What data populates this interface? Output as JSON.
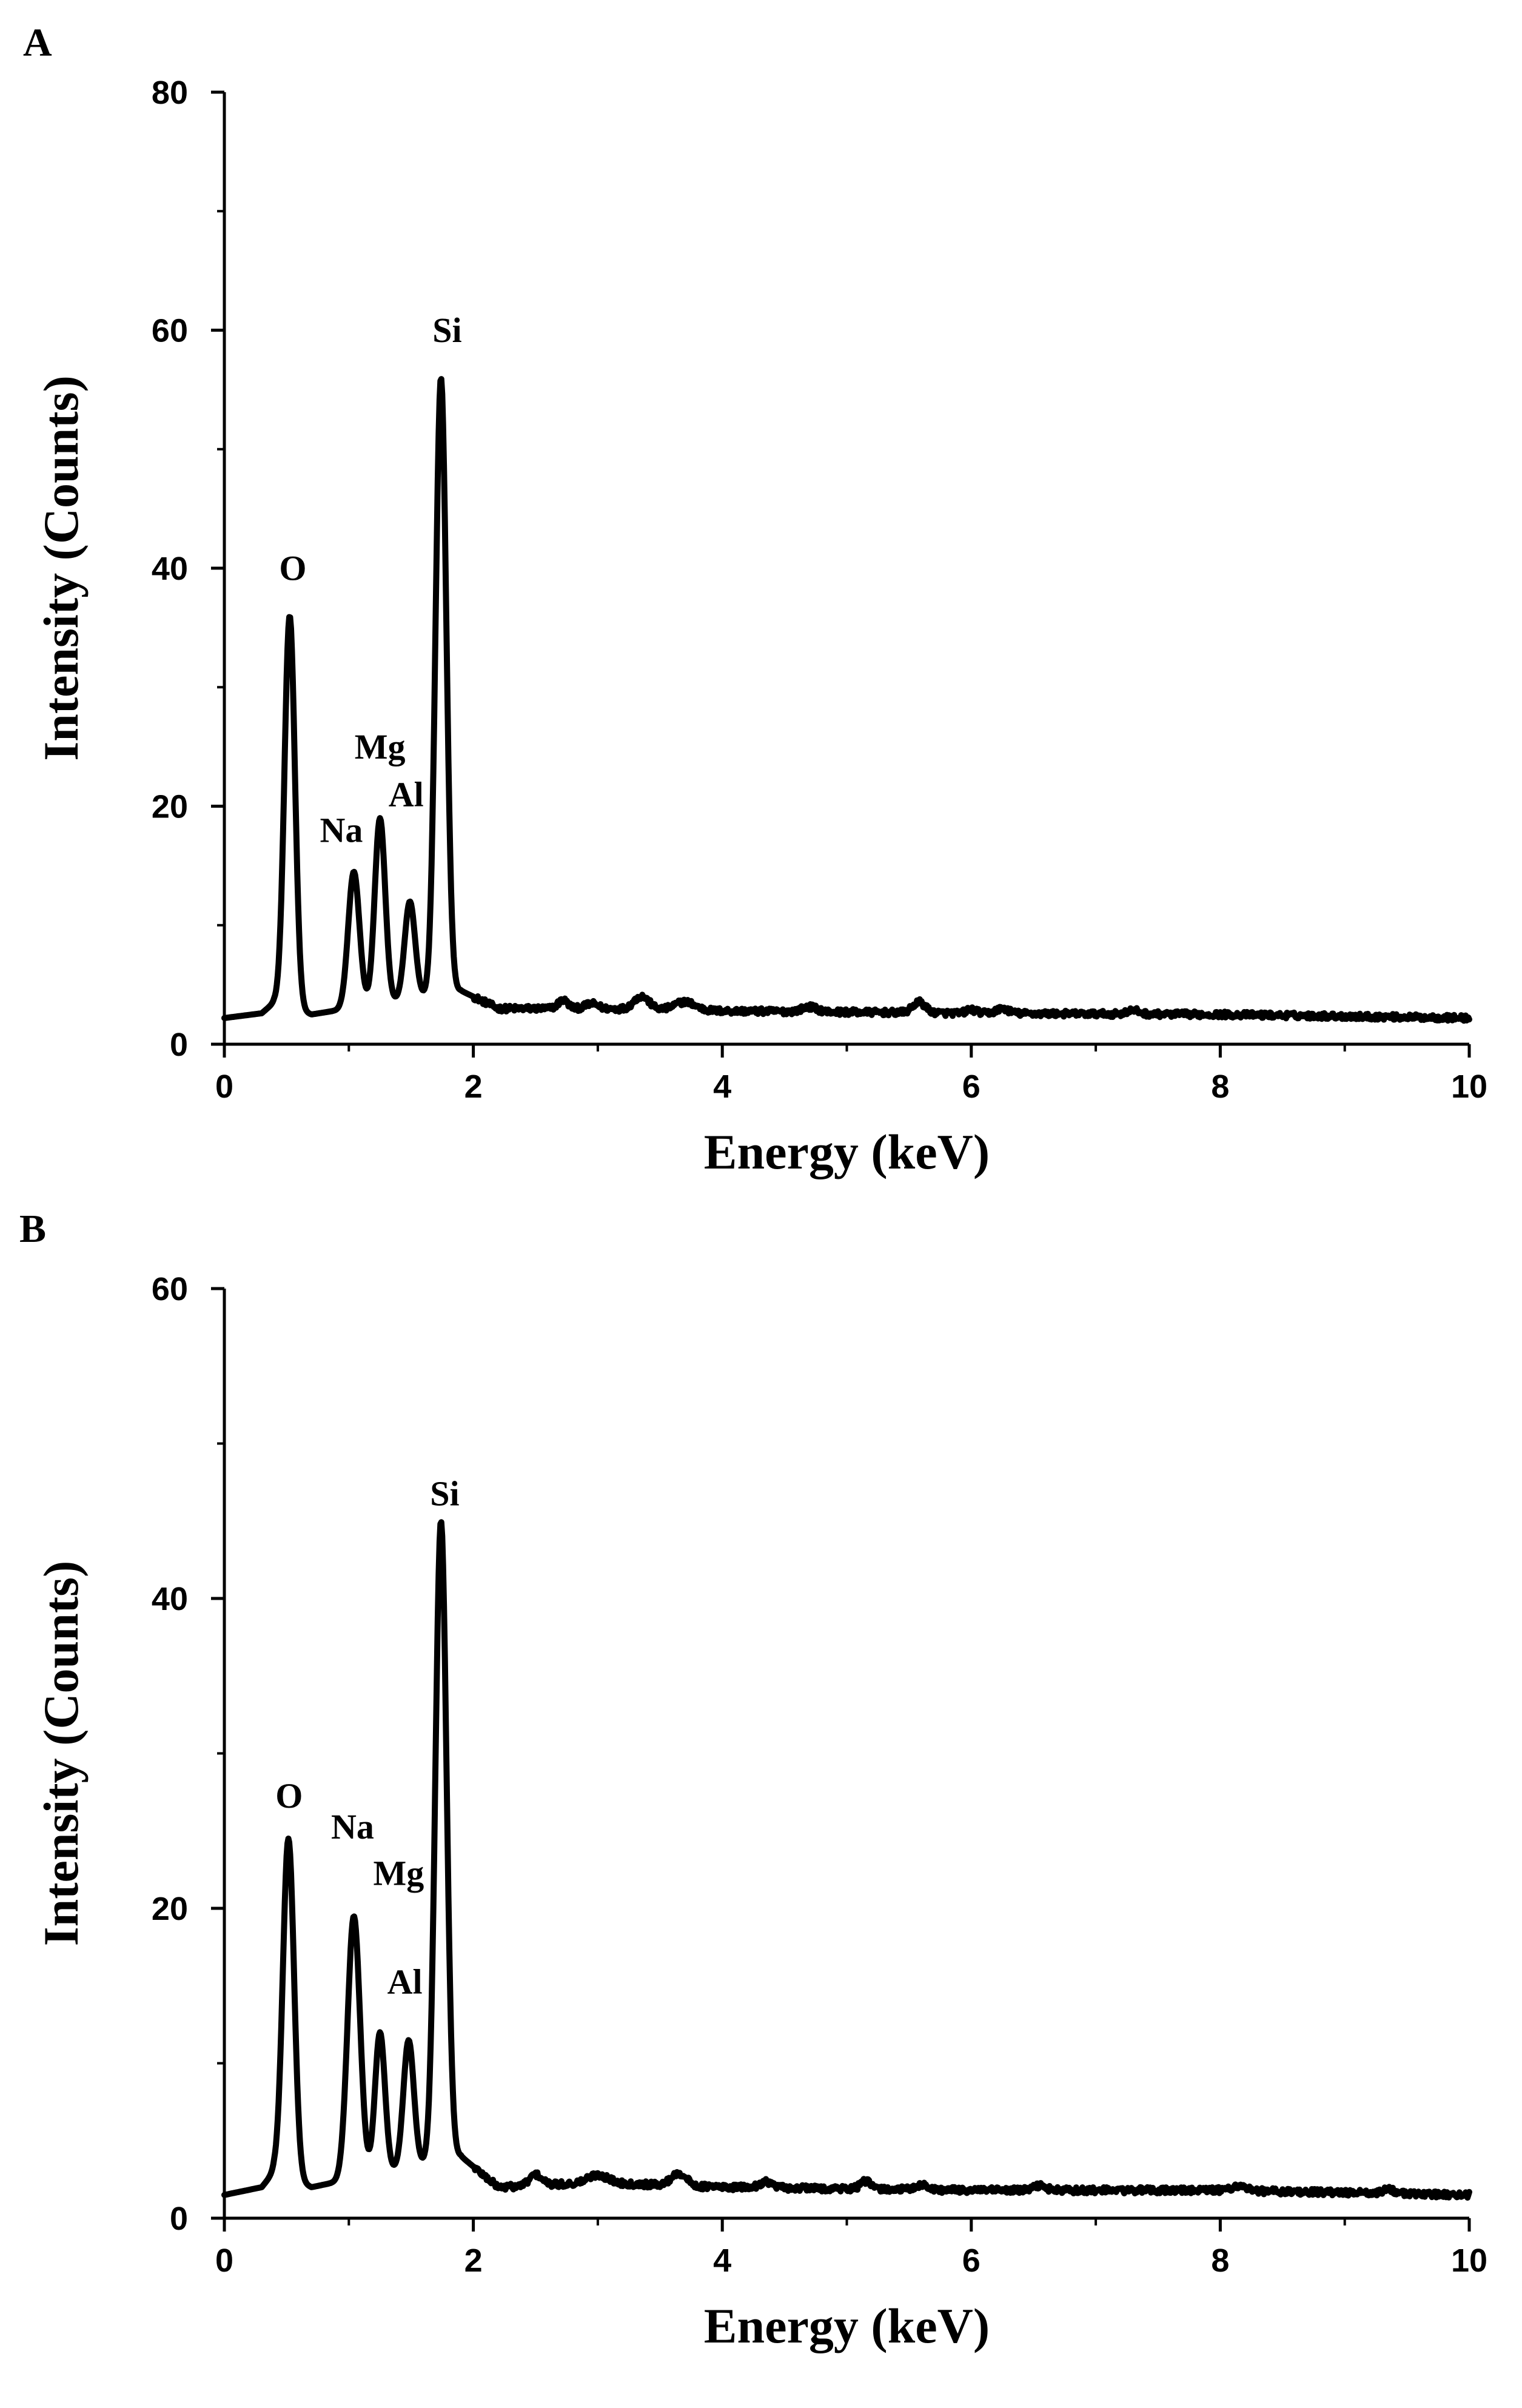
{
  "chart_data": [
    {
      "type": "line",
      "panel": "A",
      "title": "",
      "xlabel": "Energy (keV)",
      "ylabel": "Intensity (Counts)",
      "xlim": [
        0,
        10
      ],
      "ylim": [
        0,
        80
      ],
      "xticks": [
        0,
        2,
        4,
        6,
        8,
        10
      ],
      "yticks": [
        0,
        20,
        40,
        60,
        80
      ],
      "baseline": [
        [
          0,
          2.2
        ],
        [
          0.3,
          2.6
        ],
        [
          0.4,
          3.5
        ],
        [
          0.7,
          2.5
        ],
        [
          1.0,
          3.0
        ],
        [
          1.9,
          4.5
        ],
        [
          2.2,
          3.0
        ],
        [
          3.0,
          3.0
        ],
        [
          4.0,
          2.8
        ],
        [
          6.0,
          2.6
        ],
        [
          8.0,
          2.5
        ],
        [
          10,
          2.2
        ]
      ],
      "noise": 0.25,
      "wiggles": [
        [
          2.72,
          0.7,
          0.04
        ],
        [
          2.95,
          0.4,
          0.05
        ],
        [
          3.35,
          1.1,
          0.06
        ],
        [
          3.7,
          0.7,
          0.08
        ],
        [
          4.7,
          0.4,
          0.06
        ],
        [
          5.58,
          0.9,
          0.05
        ],
        [
          6.0,
          0.3,
          0.04
        ],
        [
          6.25,
          0.4,
          0.05
        ],
        [
          7.3,
          0.3,
          0.05
        ]
      ],
      "peaks": [
        {
          "label": "O",
          "x": 0.525,
          "y": 36,
          "width": 0.042
        },
        {
          "label": "Na",
          "x": 1.04,
          "y": 14.5,
          "width": 0.045
        },
        {
          "label": "Mg",
          "x": 1.25,
          "y": 19,
          "width": 0.042
        },
        {
          "label": "Al",
          "x": 1.49,
          "y": 12,
          "width": 0.042
        },
        {
          "label": "Si",
          "x": 1.74,
          "y": 56,
          "width": 0.043
        }
      ],
      "annotations": [
        {
          "text": "O",
          "x": 0.55,
          "y": 39
        },
        {
          "text": "Na",
          "x": 0.94,
          "y": 17
        },
        {
          "text": "Mg",
          "x": 1.25,
          "y": 24
        },
        {
          "text": "Al",
          "x": 1.46,
          "y": 20
        },
        {
          "text": "Si",
          "x": 1.79,
          "y": 59
        }
      ]
    },
    {
      "type": "line",
      "panel": "B",
      "title": "",
      "xlabel": "Energy (keV)",
      "ylabel": "Intensity (Counts)",
      "xlim": [
        0,
        10
      ],
      "ylim": [
        0,
        60
      ],
      "xticks": [
        0,
        2,
        4,
        6,
        8,
        10
      ],
      "yticks": [
        0,
        20,
        40,
        60
      ],
      "baseline": [
        [
          0,
          1.5
        ],
        [
          0.3,
          2.0
        ],
        [
          0.4,
          3.0
        ],
        [
          0.7,
          2.0
        ],
        [
          1.0,
          2.5
        ],
        [
          1.9,
          4.0
        ],
        [
          2.2,
          2.0
        ],
        [
          3.0,
          2.3
        ],
        [
          4.0,
          2.0
        ],
        [
          6.0,
          1.8
        ],
        [
          8.0,
          1.8
        ],
        [
          10,
          1.5
        ]
      ],
      "noise": 0.2,
      "wiggles": [
        [
          2.5,
          0.7,
          0.05
        ],
        [
          3.0,
          0.5,
          0.08
        ],
        [
          3.65,
          0.8,
          0.06
        ],
        [
          4.35,
          0.4,
          0.05
        ],
        [
          5.15,
          0.5,
          0.04
        ],
        [
          5.6,
          0.3,
          0.05
        ],
        [
          6.55,
          0.3,
          0.05
        ],
        [
          8.15,
          0.3,
          0.06
        ],
        [
          9.35,
          0.3,
          0.04
        ]
      ],
      "peaks": [
        {
          "label": "O",
          "x": 0.515,
          "y": 24.5,
          "width": 0.045
        },
        {
          "label": "Na",
          "x": 1.04,
          "y": 19.5,
          "width": 0.05
        },
        {
          "label": "Mg",
          "x": 1.25,
          "y": 12,
          "width": 0.04
        },
        {
          "label": "Al",
          "x": 1.48,
          "y": 11.5,
          "width": 0.042
        },
        {
          "label": "Si",
          "x": 1.74,
          "y": 45,
          "width": 0.045
        }
      ],
      "annotations": [
        {
          "text": "O",
          "x": 0.52,
          "y": 26.5
        },
        {
          "text": "Na",
          "x": 1.03,
          "y": 24.5
        },
        {
          "text": "Mg",
          "x": 1.4,
          "y": 21.5
        },
        {
          "text": "Al",
          "x": 1.45,
          "y": 14.5
        },
        {
          "text": "Si",
          "x": 1.77,
          "y": 46
        }
      ]
    }
  ]
}
